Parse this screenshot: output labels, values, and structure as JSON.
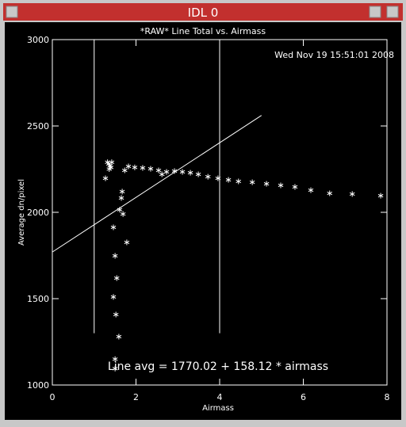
{
  "window": {
    "title": "IDL 0"
  },
  "chart_data": {
    "type": "scatter",
    "title": "*RAW* Line Total vs. Airmass",
    "timestamp": "Wed Nov 19 15:51:01 2008",
    "x_label": "Airmass",
    "y_label": "Average dn/pixel",
    "annotation": "Line avg = 1770.02 + 158.12 * airmass",
    "xlim": [
      0,
      8
    ],
    "ylim": [
      1000,
      3000
    ],
    "xticks": [
      0,
      2,
      4,
      6,
      8
    ],
    "yticks": [
      1000,
      1500,
      2000,
      2500,
      3000
    ],
    "color": "#ffffff",
    "x": [
      1.27,
      1.32,
      1.35,
      1.38,
      1.4,
      1.42,
      1.36,
      1.46,
      1.5,
      1.54,
      1.46,
      1.52,
      1.59,
      1.5,
      1.5,
      1.61,
      1.65,
      1.67,
      1.69,
      1.78,
      1.73,
      1.82,
      1.97,
      2.16,
      2.35,
      2.54,
      2.62,
      2.73,
      2.92,
      3.11,
      3.3,
      3.49,
      3.72,
      3.96,
      4.21,
      4.45,
      4.78,
      5.12,
      5.46,
      5.8,
      6.18,
      6.63,
      7.17,
      7.85
    ],
    "values": [
      2197,
      2290,
      2280,
      2270,
      2260,
      2290,
      2250,
      1913,
      1748,
      1619,
      1510,
      1408,
      1280,
      1150,
      1095,
      2015,
      2083,
      2120,
      1990,
      1826,
      2243,
      2266,
      2260,
      2257,
      2252,
      2243,
      2220,
      2234,
      2239,
      2234,
      2229,
      2220,
      2206,
      2197,
      2188,
      2179,
      2174,
      2165,
      2156,
      2147,
      2128,
      2110,
      2106,
      2096
    ],
    "fit_line": {
      "x": [
        0,
        5
      ],
      "values": [
        1770,
        2561
      ]
    },
    "vertical_lines": {
      "x": [
        1,
        4
      ],
      "ylim": [
        1300,
        3000
      ]
    }
  }
}
